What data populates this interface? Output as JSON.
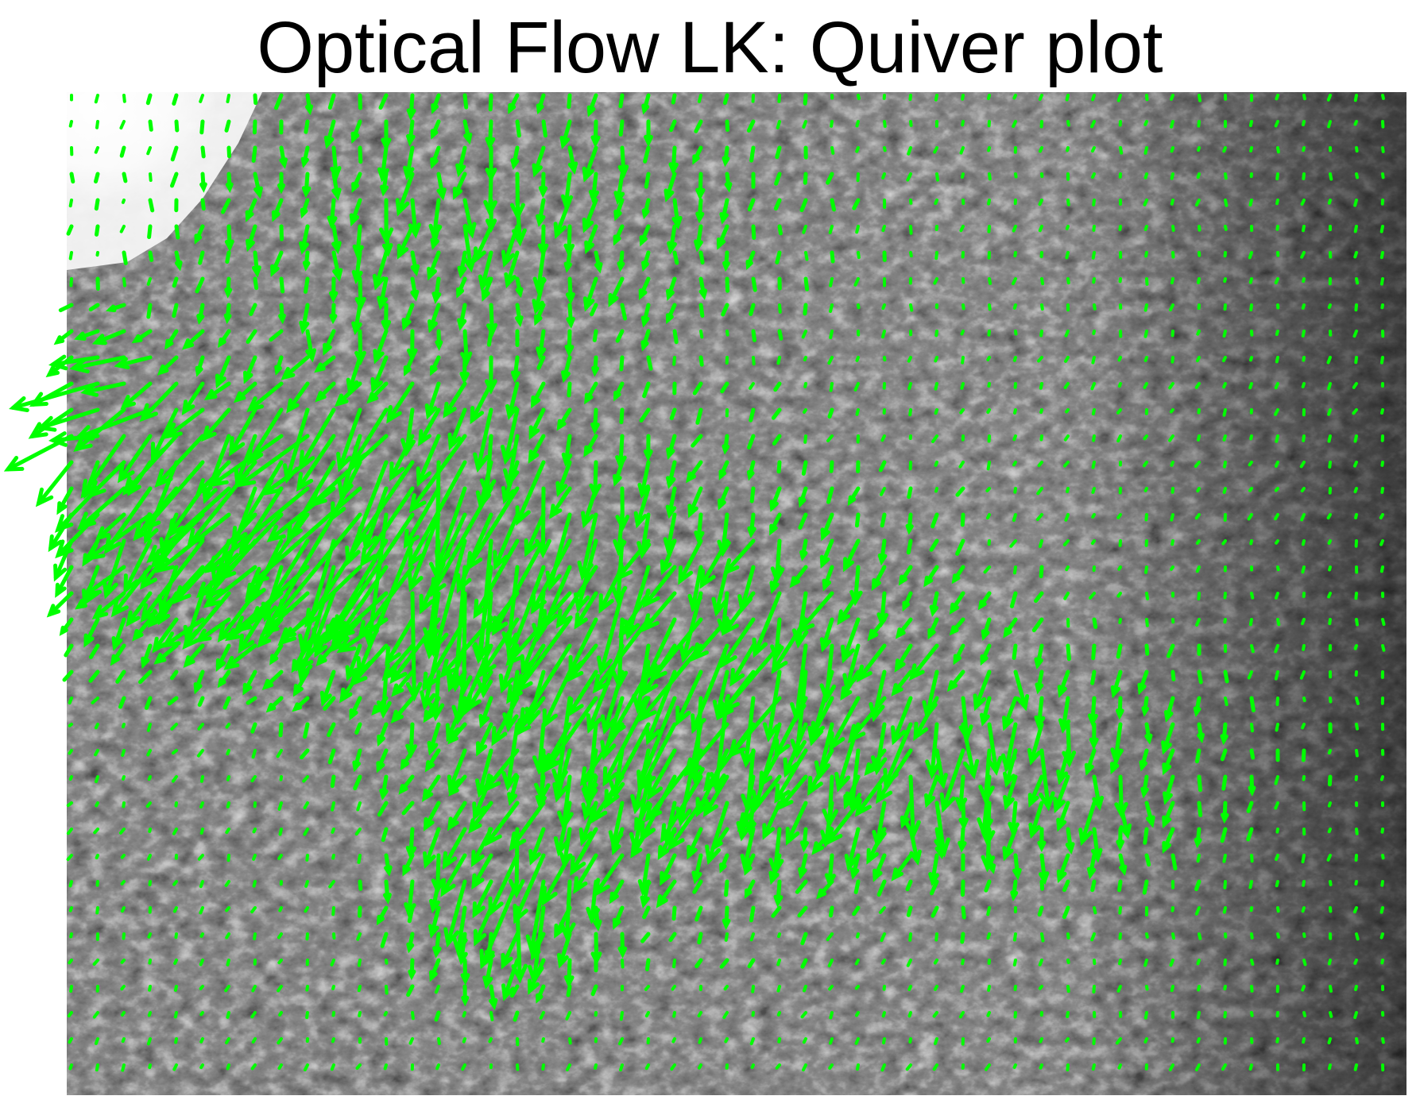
{
  "title": "Optical Flow LK: Quiver plot",
  "plot": {
    "type": "quiver",
    "background": "grayscale photograph of evergreen tree foliage",
    "arrow_color": "#00ff00",
    "frame_color": "#000000"
  },
  "colors": {
    "arrow": "#00ff00",
    "sky": "#f5f5f5",
    "foliage_dark": "#1e1e1e",
    "foliage_mid": "#555555",
    "foliage_light": "#9a9a9a"
  }
}
